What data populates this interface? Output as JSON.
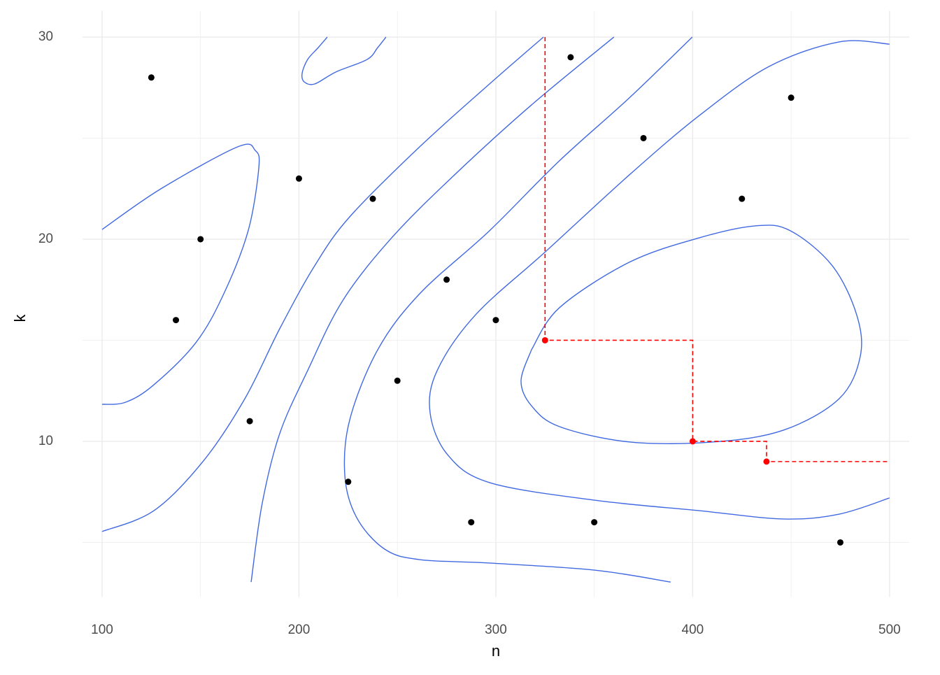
{
  "chart_data": {
    "type": "scatter",
    "x_label": "n",
    "y_label": "k",
    "xlim": [
      90,
      510
    ],
    "ylim": [
      2.3,
      31.3
    ],
    "xticks": [
      100,
      200,
      300,
      400,
      500
    ],
    "yticks": [
      10,
      20,
      30
    ],
    "minor_xticks": [
      150,
      250,
      350,
      450
    ],
    "minor_yticks": [
      5,
      15,
      25
    ],
    "grid": true,
    "points": {
      "color": "#000000",
      "x": [
        125,
        137.5,
        150,
        175,
        200,
        225,
        237.5,
        250,
        275,
        287.5,
        300,
        338,
        350,
        375,
        425,
        450,
        475
      ],
      "y": [
        28,
        16,
        20,
        11,
        23,
        8,
        22,
        13,
        18,
        6,
        16,
        29,
        6,
        25,
        22,
        27,
        5
      ]
    },
    "highlight": {
      "color": "#ff0000",
      "x": [
        325,
        400,
        437.5
      ],
      "y": [
        15,
        10,
        9
      ]
    },
    "path": {
      "color": "#ff0000",
      "x": [
        325,
        325,
        400,
        400,
        437.5,
        437.5,
        500
      ],
      "y": [
        30,
        15,
        15,
        10,
        10,
        9,
        9
      ]
    },
    "contour_color": "#4169e1",
    "contours": [
      {
        "x": [
          214.4,
          209.8,
          204.4,
          201.6,
          202.7,
          208,
          218.7,
          234.6,
          240,
          244.2
        ],
        "y": [
          30,
          29.48,
          28.89,
          28.2,
          27.78,
          27.68,
          28.27,
          28.89,
          29.48,
          30
        ]
      },
      {
        "x": [
          100,
          129.8,
          168.9,
          177.8,
          179.6,
          174.2,
          161.8,
          147.6,
          126.3,
          112.1,
          100
        ],
        "y": [
          20.48,
          22.49,
          24.57,
          24.39,
          23.53,
          20.42,
          17.3,
          14.88,
          12.8,
          11.94,
          11.83
        ]
      },
      {
        "x": [
          100,
          126.3,
          151.2,
          172.5,
          190.2,
          208,
          225.8,
          261.3,
          296.8,
          324.2
        ],
        "y": [
          5.54,
          6.57,
          9.0,
          12.11,
          15.57,
          18.69,
          21.11,
          24.57,
          27.68,
          30
        ]
      },
      {
        "x": [
          175.7,
          181.3,
          190.2,
          204.4,
          222.2,
          247.1,
          279,
          318.1,
          360
        ],
        "y": [
          3.04,
          6.92,
          10.38,
          13.5,
          16.96,
          20.07,
          23.18,
          26.64,
          30
        ]
      },
      {
        "x": [
          388.8,
          350.1,
          296.8,
          261.3,
          243.5,
          229.3,
          223.3,
          225.8,
          240,
          261.3,
          296.8,
          332.3,
          367.8,
          399.8
        ],
        "y": [
          3.04,
          3.63,
          3.98,
          4.15,
          4.67,
          6.23,
          8.3,
          11.07,
          14.53,
          17.3,
          20.42,
          23.88,
          26.99,
          30
        ]
      },
      {
        "x": [
          500,
          474.4,
          446,
          403.4,
          350.1,
          296.8,
          275.5,
          266.6,
          270.2,
          289.7,
          325.2,
          367.8,
          403.4,
          438.9,
          474.4,
          500
        ],
        "y": [
          7.2,
          6.4,
          6.16,
          6.57,
          7.09,
          7.96,
          9.34,
          11.42,
          13.5,
          16.26,
          19.38,
          23.18,
          26.12,
          28.55,
          29.76,
          29.65
        ]
      },
      {
        "x": [
          318.1,
          312.8,
          318.1,
          332.3,
          367.8,
          410.5,
          446,
          474.4,
          485.1,
          483.3,
          470.9,
          449.6,
          431.8,
          403.4,
          367.8,
          332.3,
          318.1
        ],
        "y": [
          14.53,
          12.98,
          11.76,
          10.73,
          9.97,
          9.97,
          10.55,
          12.11,
          14.19,
          16.26,
          18.69,
          20.42,
          20.66,
          20.07,
          18.86,
          16.61,
          14.53
        ]
      }
    ]
  }
}
